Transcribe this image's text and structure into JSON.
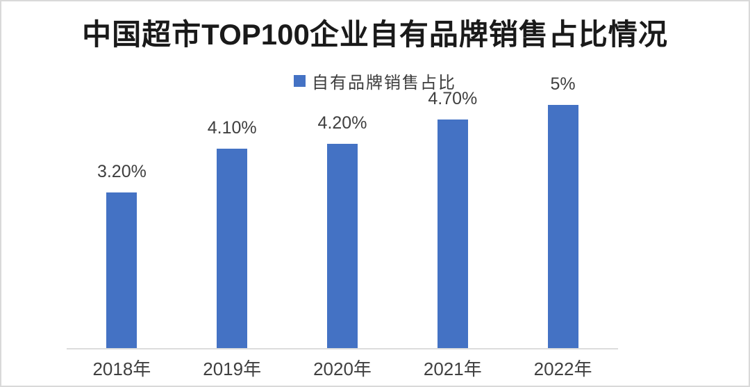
{
  "title": {
    "prefix": "中国超市",
    "emphasis": "TOP100",
    "suffix": "企业自有品牌销售占比情况",
    "full": "中国超市TOP100企业自有品牌销售占比情况"
  },
  "legend": {
    "label": "自有品牌销售占比"
  },
  "chart_data": {
    "type": "bar",
    "title": "中国超市TOP100企业自有品牌销售占比情况",
    "series_name": "自有品牌销售占比",
    "categories": [
      "2018年",
      "2019年",
      "2020年",
      "2021年",
      "2022年"
    ],
    "values": [
      3.2,
      4.1,
      4.2,
      4.7,
      5.0
    ],
    "value_labels": [
      "3.20%",
      "4.10%",
      "4.20%",
      "4.70%",
      "5%"
    ],
    "unit": "%",
    "ylim": [
      0,
      5.15
    ],
    "grid": false,
    "y_axis_visible": false,
    "legend_position": "top-center",
    "xlabel": "",
    "ylabel": ""
  },
  "colors": {
    "bar": "#4472C4",
    "axis_line": "#dcdcdc",
    "border": "#d9d9d9",
    "data_label": "#3f3f3f",
    "axis_label": "#404040",
    "title": "#1a1a1a"
  }
}
